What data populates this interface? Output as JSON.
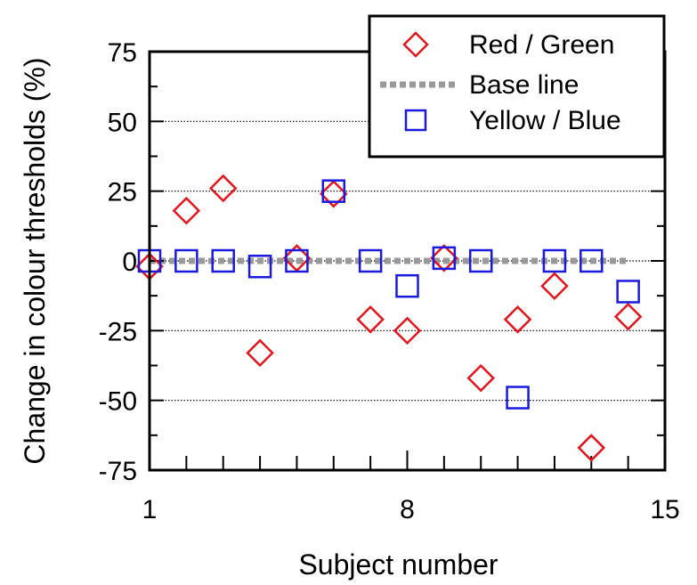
{
  "chart_data": {
    "type": "scatter",
    "title": "",
    "xlabel": "Subject number",
    "ylabel": "Change in colour thresholds (%)",
    "xlim": [
      1,
      15
    ],
    "ylim": [
      -75,
      75
    ],
    "x_ticks": [
      "1",
      "8",
      "15"
    ],
    "y_ticks": [
      "75",
      "50",
      "25",
      "0",
      "-25",
      "-50",
      "-75"
    ],
    "grid": "horizontal dotted",
    "legend_position": "top-right",
    "series": [
      {
        "name": "Red / Green",
        "marker": "diamond",
        "color": "#e8141c",
        "x": [
          1,
          2,
          3,
          4,
          5,
          6,
          7,
          8,
          9,
          10,
          11,
          12,
          13,
          14
        ],
        "y": [
          -2,
          18,
          26,
          -33,
          1,
          24,
          -21,
          -25,
          1,
          -42,
          -21,
          -9,
          -67,
          -20
        ]
      },
      {
        "name": "Base line",
        "marker": "dotted-line",
        "color": "#999999",
        "x": [
          1,
          14
        ],
        "y": [
          0,
          0
        ]
      },
      {
        "name": "Yellow / Blue",
        "marker": "square",
        "color": "#1a1adf",
        "x": [
          1,
          2,
          3,
          4,
          5,
          6,
          7,
          8,
          9,
          10,
          11,
          12,
          13,
          14
        ],
        "y": [
          0,
          0,
          0,
          -2,
          0,
          25,
          0,
          -9,
          1,
          0,
          -49,
          0,
          0,
          -11
        ]
      }
    ]
  }
}
